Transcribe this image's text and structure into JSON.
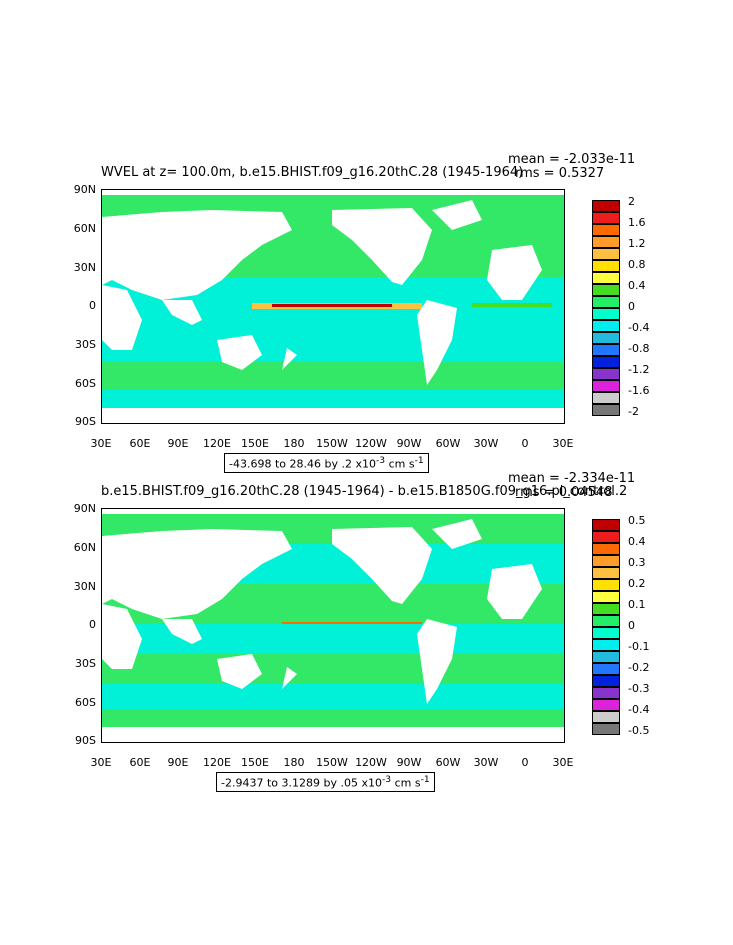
{
  "panels": [
    {
      "title": "WVEL at z= 100.0m, b.e15.BHIST.f09_g16.20thC.28 (1945-1964)",
      "mean": "mean = -2.033e-11",
      "rms": "rms = 0.5327",
      "range": "-43.698 to 28.46 by .2 x10",
      "range_exp": "-3",
      "range_unit": " cm s",
      "range_unit_exp": "-1",
      "y_ticks": [
        "90N",
        "60N",
        "30N",
        "0",
        "30S",
        "60S",
        "90S"
      ],
      "x_ticks": [
        "30E",
        "60E",
        "90E",
        "120E",
        "150E",
        "180",
        "150W",
        "120W",
        "90W",
        "60W",
        "30W",
        "0",
        "30E"
      ],
      "colorbar_labels": [
        "2",
        "1.6",
        "1.2",
        "0.8",
        "0.4",
        "0",
        "-0.4",
        "-0.8",
        "-1.2",
        "-1.6",
        "-2"
      ]
    },
    {
      "title": "b.e15.BHIST.f09_g16.20thC.28 (1945-1964) - b.e15.B1850G.f09_g16.pi_control.2",
      "mean": "mean = -2.334e-11",
      "rms": "rms = 0.04548",
      "range": "-2.9437 to 3.1289 by .05 x10",
      "range_exp": "-3",
      "range_unit": " cm s",
      "range_unit_exp": "-1",
      "y_ticks": [
        "90N",
        "60N",
        "30N",
        "0",
        "30S",
        "60S",
        "90S"
      ],
      "x_ticks": [
        "30E",
        "60E",
        "90E",
        "120E",
        "150E",
        "180",
        "150W",
        "120W",
        "90W",
        "60W",
        "30W",
        "0",
        "30E"
      ],
      "colorbar_labels": [
        "0.5",
        "0.4",
        "0.3",
        "0.2",
        "0.1",
        "0",
        "-0.1",
        "-0.2",
        "-0.3",
        "-0.4",
        "-0.5"
      ]
    }
  ],
  "colors": {
    "palette": [
      "#c00000",
      "#ee1c1c",
      "#ff6a00",
      "#ff9c2a",
      "#ffbf40",
      "#ffe000",
      "#ffff40",
      "#44dd22",
      "#22ee66",
      "#00ffcc",
      "#00eeee",
      "#22bbdd",
      "#2277ff",
      "#0022dd",
      "#8833cc",
      "#dd22dd",
      "#cccccc",
      "#777777"
    ],
    "ocean_main": "#00f0d8",
    "ocean_green": "#33e866",
    "land": "#ffffff"
  }
}
